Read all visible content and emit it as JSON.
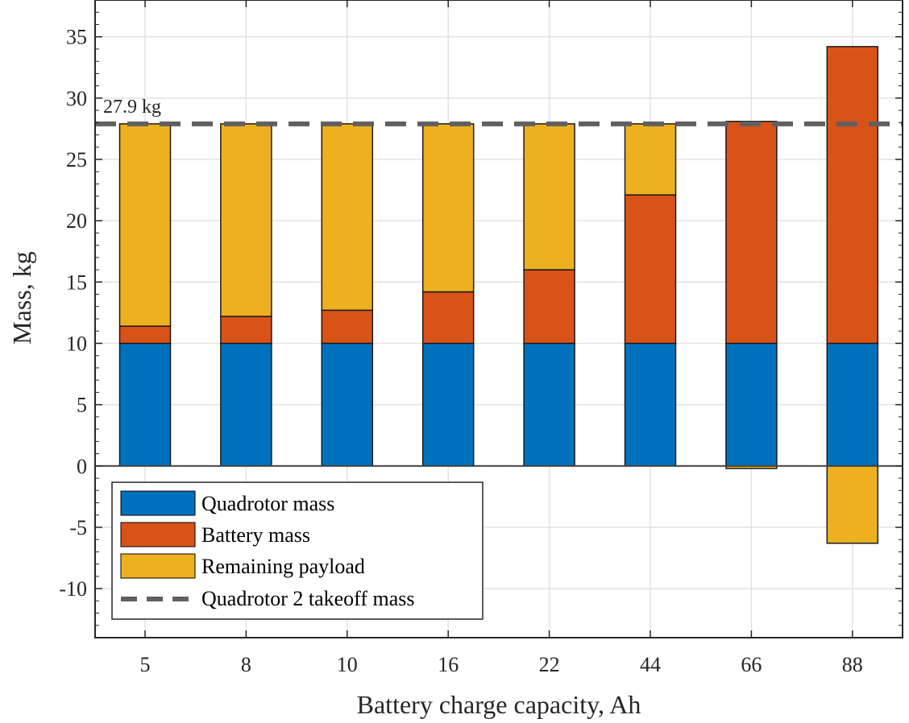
{
  "chart_data": {
    "type": "bar",
    "stacked": true,
    "xlabel": "Battery charge capacity, Ah",
    "ylabel": "Mass, kg",
    "categories": [
      "5",
      "8",
      "10",
      "16",
      "22",
      "44",
      "66",
      "88"
    ],
    "ylim": [
      -14,
      38
    ],
    "yticks": [
      -10,
      -5,
      0,
      5,
      10,
      15,
      20,
      25,
      30,
      35
    ],
    "grid": true,
    "legend_position": "bottom-left",
    "series": [
      {
        "name": "Quadrotor mass",
        "color": "#0072BD",
        "values": [
          10,
          10,
          10,
          10,
          10,
          10,
          10,
          10
        ]
      },
      {
        "name": "Battery mass",
        "color": "#D95319",
        "values": [
          1.4,
          2.2,
          2.7,
          4.2,
          6.0,
          12.1,
          18.1,
          24.2
        ]
      },
      {
        "name": "Remaining payload",
        "color": "#EDB120",
        "values": [
          16.5,
          15.7,
          15.2,
          13.7,
          11.9,
          5.8,
          -0.2,
          -6.3
        ]
      }
    ],
    "reference_line": {
      "name": "Quadrotor 2 takeoff mass",
      "value": 27.9,
      "style": "dashed",
      "color": "#606060",
      "label": "27.9 kg"
    }
  }
}
